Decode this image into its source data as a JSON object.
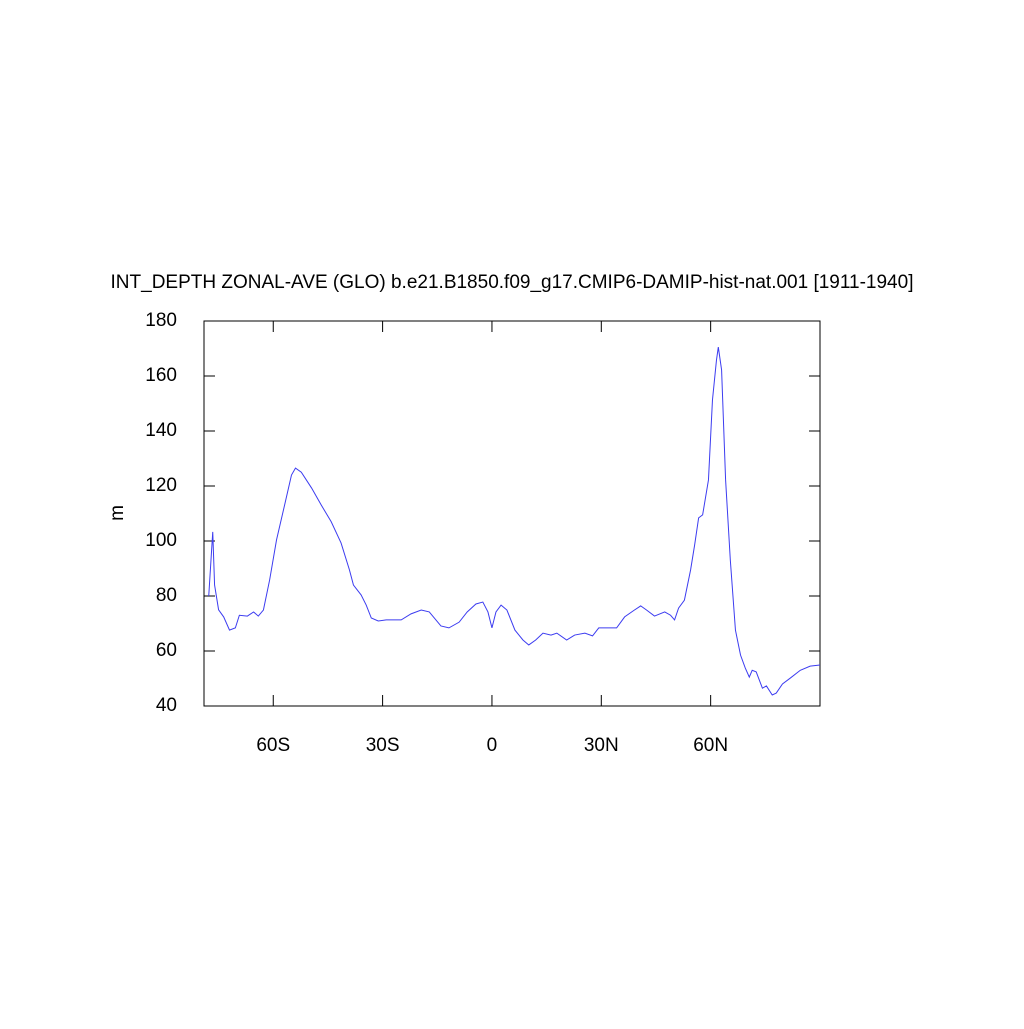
{
  "chart_data": {
    "type": "line",
    "title": "INT_DEPTH ZONAL-AVE (GLO) b.e21.B1850.f09_g17.CMIP6-DAMIP-hist-nat.001 [1911-1940]",
    "y_label": "m",
    "x": [
      -77.7,
      -76.6,
      -76.1,
      -75,
      -73.6,
      -72,
      -70.4,
      -69.3,
      -67.1,
      -65.4,
      -64.1,
      -62.7,
      -61,
      -59.1,
      -56.9,
      -55,
      -53.9,
      -52.3,
      -49.5,
      -46.8,
      -44.1,
      -41.4,
      -39.1,
      -38,
      -35.9,
      -34.5,
      -33.1,
      -31.2,
      -29,
      -24.9,
      -22.2,
      -19.4,
      -17.2,
      -14,
      -11.8,
      -9,
      -6.8,
      -4.4,
      -2.5,
      -1.1,
      0,
      1.1,
      2.5,
      4.1,
      6.3,
      8.5,
      10.1,
      12,
      14,
      16.2,
      17.8,
      20.5,
      22.7,
      25.5,
      27.6,
      29.3,
      31.5,
      34.2,
      36.4,
      39.1,
      40.8,
      42.4,
      44.6,
      47.4,
      49,
      50.1,
      51.2,
      52.8,
      54.5,
      55.6,
      56.7,
      57.8,
      59.4,
      60.5,
      61.6,
      62.1,
      63,
      64.1,
      65.4,
      66.8,
      68.2,
      69.5,
      70.6,
      71.4,
      72.5,
      74.2,
      75.3,
      76.9,
      78,
      79.7,
      81.9,
      84.6,
      87.3,
      90
    ],
    "series": [
      {
        "name": "INT_DEPTH",
        "color": "#3c3cf0",
        "values": [
          80,
          103.3,
          84,
          75,
          72.4,
          67.6,
          68.4,
          73,
          72.7,
          74.2,
          72.7,
          74.9,
          85.8,
          100.4,
          113,
          124,
          126.5,
          125,
          119.3,
          113,
          107,
          99.3,
          89.5,
          84,
          80.4,
          76.7,
          72,
          70.9,
          71.3,
          71.3,
          73.5,
          74.9,
          74.2,
          69.1,
          68.4,
          70.5,
          74.2,
          77.1,
          77.8,
          74.2,
          68.4,
          74.2,
          76.7,
          74.9,
          67.6,
          64,
          62.2,
          64,
          66.5,
          65.8,
          66.5,
          64,
          65.8,
          66.5,
          65.5,
          68.4,
          68.4,
          68.4,
          72.4,
          74.9,
          76.4,
          74.9,
          72.7,
          74.2,
          73,
          71.3,
          75.6,
          78.5,
          89.5,
          98.5,
          108.4,
          109.5,
          122.2,
          151.3,
          165.8,
          170.5,
          162.2,
          122.2,
          93,
          67.6,
          58.5,
          53.8,
          50.5,
          53,
          52.4,
          46.5,
          47.3,
          44,
          44.7,
          48,
          50.2,
          53,
          54.5,
          54.9
        ]
      }
    ],
    "xlim": [
      -79,
      90
    ],
    "xticks": [
      {
        "value": -60,
        "label": "60S"
      },
      {
        "value": -30,
        "label": "30S"
      },
      0,
      {
        "value": 30,
        "label": "30N"
      },
      {
        "value": 60,
        "label": "60N"
      }
    ],
    "ylim": [
      40,
      180
    ],
    "yticks": [
      40,
      60,
      80,
      100,
      120,
      140,
      160,
      180
    ]
  }
}
